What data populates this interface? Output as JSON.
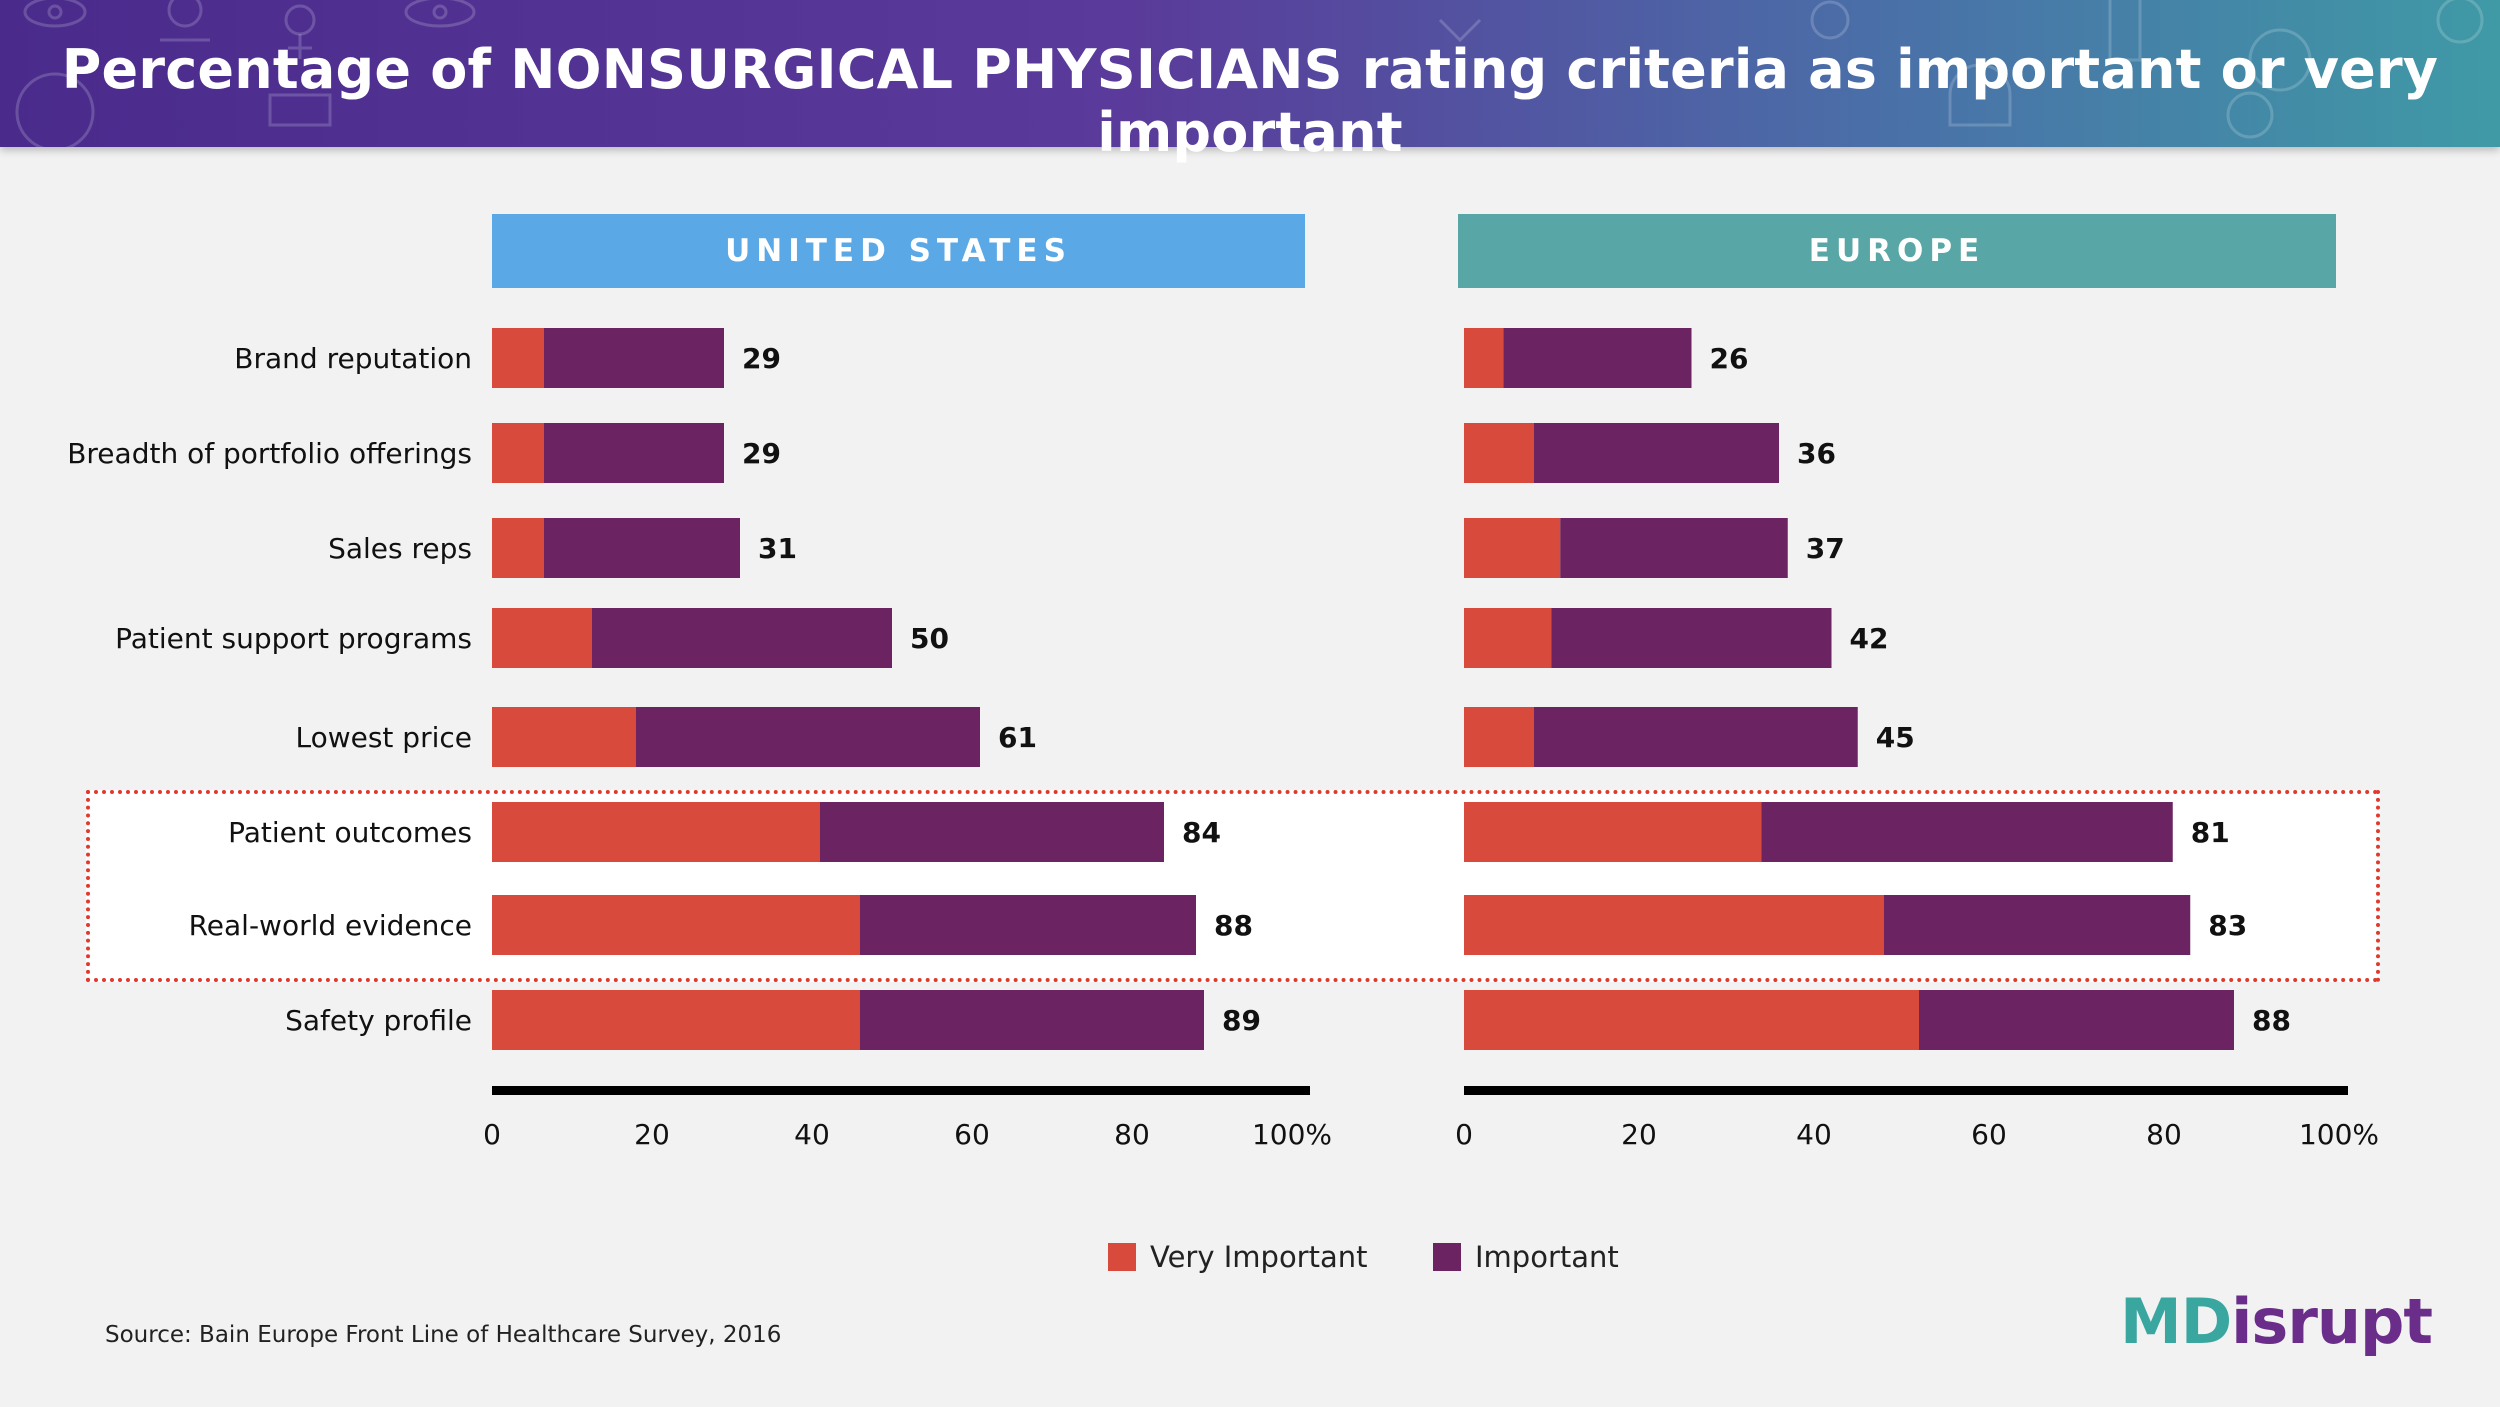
{
  "header": {
    "title": "Percentage of NONSURGICAL PHYSICIANS rating criteria as important or very important"
  },
  "panels": [
    {
      "label": "UNITED STATES",
      "color": "#5aa9e6"
    },
    {
      "label": "EUROPE",
      "color": "#58a6a6"
    }
  ],
  "legend": {
    "items": [
      {
        "label": "Very Important",
        "color": "#d84a3c"
      },
      {
        "label": "Important",
        "color": "#6b2461"
      }
    ]
  },
  "source": "Source: Bain Europe Front Line of Healthcare Survey, 2016",
  "logo": {
    "part1": "MD",
    "part2": "isrupt"
  },
  "chart_data": {
    "type": "bar",
    "orientation": "horizontal",
    "stacked": true,
    "categories": [
      "Brand reputation",
      "Breadth of portfolio offerings",
      "Sales reps",
      "Patient support programs",
      "Lowest price",
      "Patient outcomes",
      "Real-world evidence",
      "Safety profile"
    ],
    "highlighted_categories": [
      "Patient outcomes",
      "Real-world evidence"
    ],
    "xlim": [
      0,
      100
    ],
    "xticks": [
      "0",
      "20",
      "40",
      "60",
      "80",
      "100%"
    ],
    "charts": [
      {
        "panel": "UNITED STATES",
        "series": [
          {
            "name": "Very Important",
            "values": [
              6.5,
              6.5,
              6.5,
              12.5,
              18,
              41,
              46,
              46
            ]
          },
          {
            "name": "Important",
            "values": [
              22.5,
              22.5,
              24.5,
              37.5,
              43,
              43,
              42,
              43
            ]
          }
        ],
        "totals": [
          29,
          29,
          31,
          50,
          61,
          84,
          88,
          89
        ]
      },
      {
        "panel": "EUROPE",
        "series": [
          {
            "name": "Very Important",
            "values": [
              4.5,
              8,
              11,
              10,
              8,
              34,
              48,
              52
            ]
          },
          {
            "name": "Important",
            "values": [
              21.5,
              28,
              26,
              32,
              37,
              47,
              35,
              36
            ]
          }
        ],
        "totals": [
          26,
          36,
          37,
          42,
          45,
          81,
          83,
          88
        ]
      }
    ]
  }
}
